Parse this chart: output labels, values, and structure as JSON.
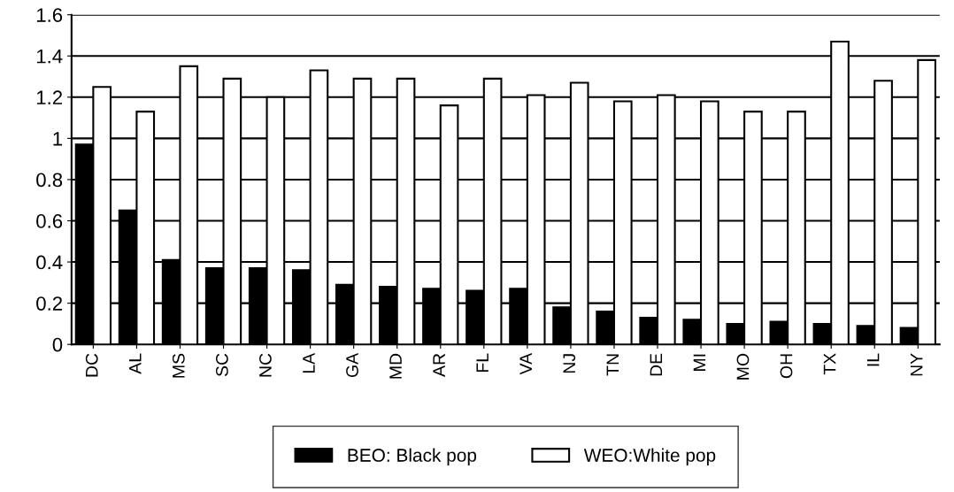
{
  "chart_data": {
    "type": "bar",
    "categories": [
      "DC",
      "AL",
      "MS",
      "SC",
      "NC",
      "LA",
      "GA",
      "MD",
      "AR",
      "FL",
      "VA",
      "NJ",
      "TN",
      "DE",
      "MI",
      "MO",
      "OH",
      "TX",
      "IL",
      "NY"
    ],
    "series": [
      {
        "name": "BEO: Black pop",
        "color": "#000000",
        "values": [
          0.97,
          0.65,
          0.41,
          0.37,
          0.37,
          0.36,
          0.29,
          0.28,
          0.27,
          0.26,
          0.27,
          0.18,
          0.16,
          0.13,
          0.12,
          0.1,
          0.11,
          0.1,
          0.09,
          0.08
        ]
      },
      {
        "name": "WEO:White pop",
        "color": "#ffffff",
        "values": [
          1.25,
          1.13,
          1.35,
          1.29,
          1.2,
          1.33,
          1.29,
          1.29,
          1.16,
          1.29,
          1.21,
          1.27,
          1.18,
          1.21,
          1.18,
          1.13,
          1.13,
          1.47,
          1.28,
          1.38
        ]
      }
    ],
    "ylim": [
      0,
      1.6
    ],
    "yticks": [
      0,
      0.2,
      0.4,
      0.6,
      0.8,
      1,
      1.2,
      1.4,
      1.6
    ],
    "grid": "y",
    "legend": "bottom"
  }
}
